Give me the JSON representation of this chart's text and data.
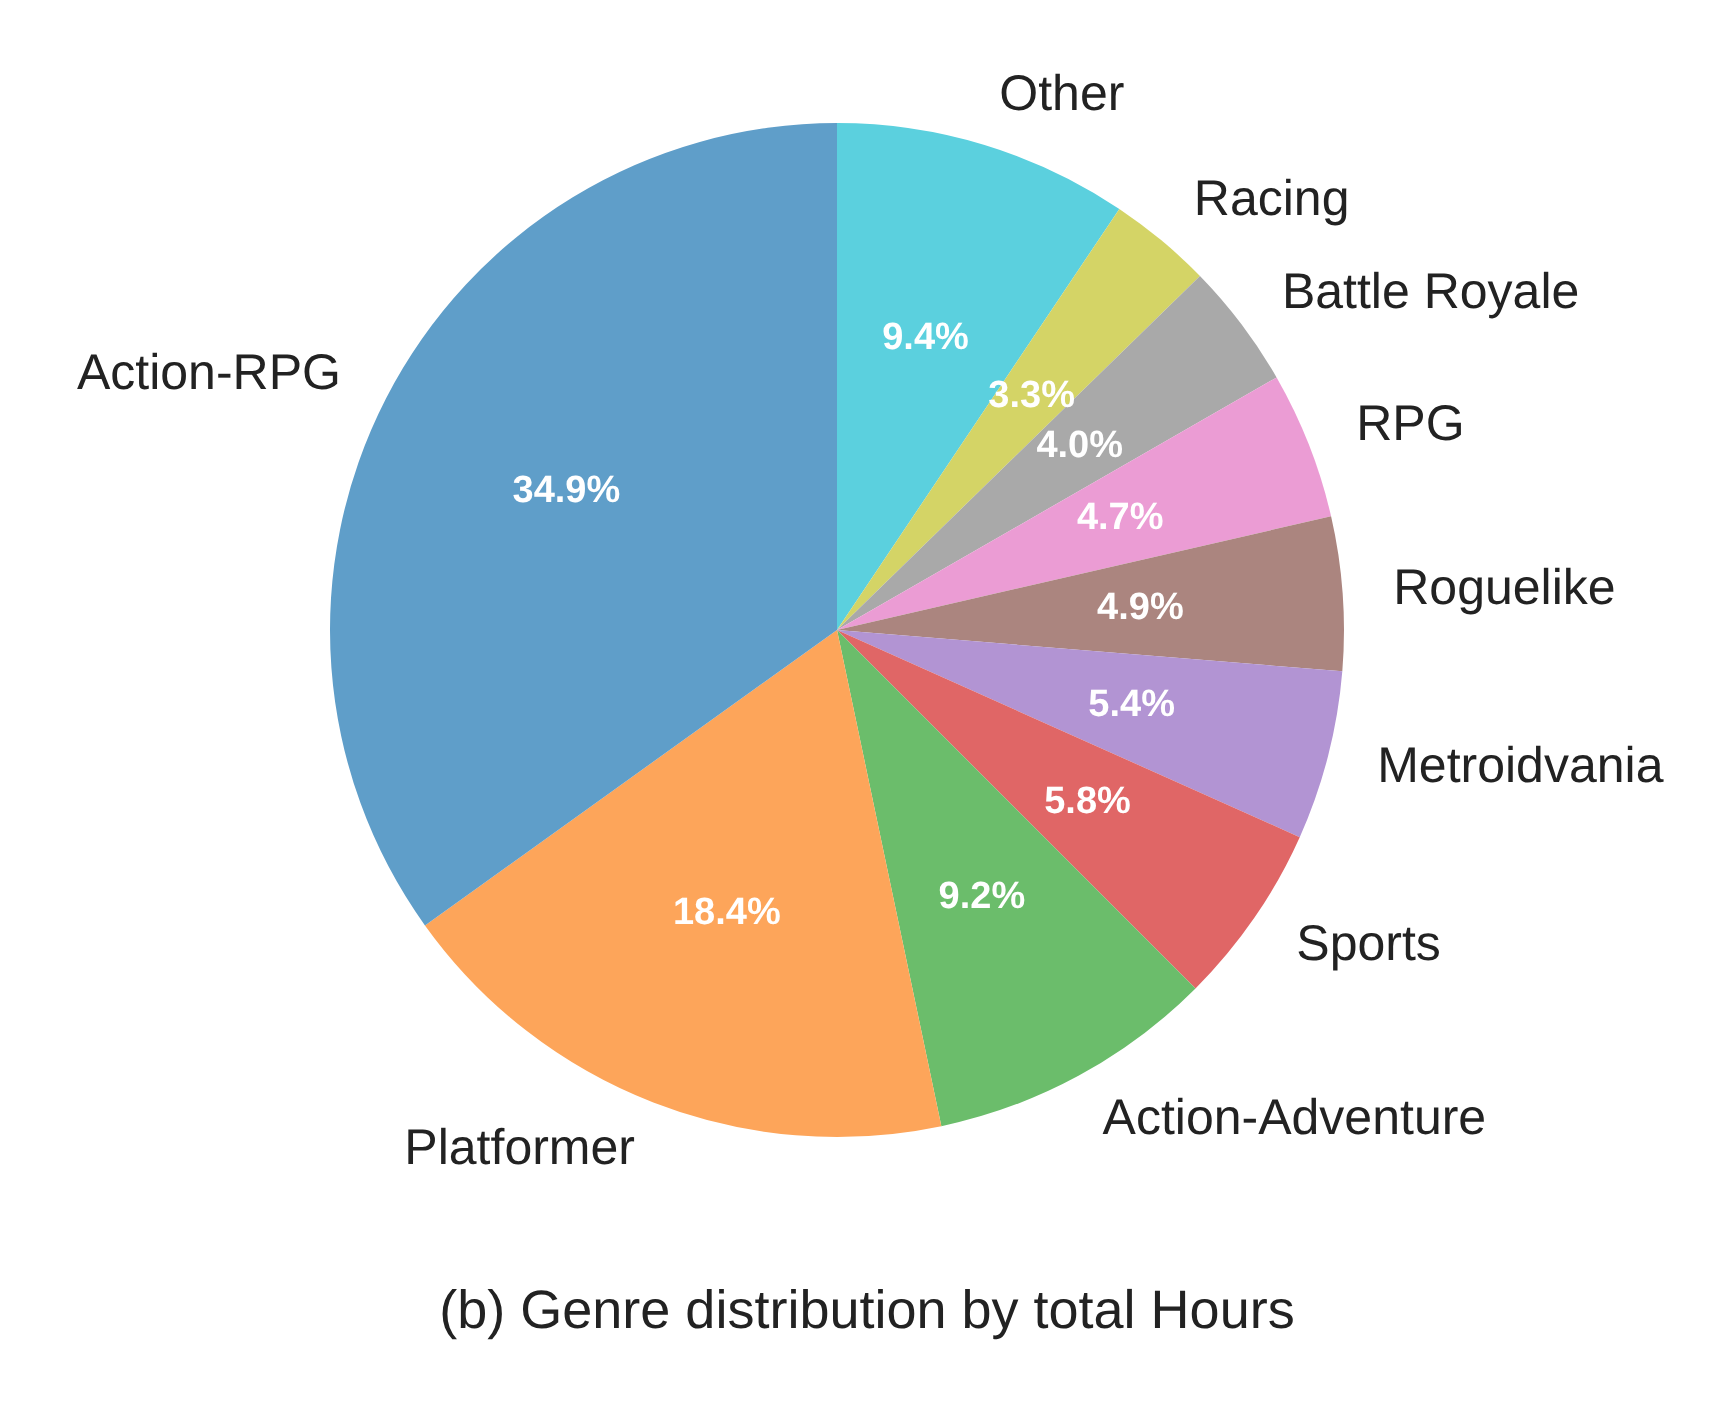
{
  "chart_data": {
    "type": "pie",
    "title": "(b) Genre distribution by total Hours",
    "categories": [
      "Other",
      "Racing",
      "Battle Royale",
      "RPG",
      "Roguelike",
      "Metroidvania",
      "Sports",
      "Action-Adventure",
      "Platformer",
      "Action-RPG"
    ],
    "values": [
      9.4,
      3.3,
      4.0,
      4.7,
      4.9,
      5.4,
      5.8,
      9.2,
      18.4,
      34.9
    ],
    "colors": [
      "#5bd0de",
      "#d4d466",
      "#a9a9a9",
      "#eb9cd4",
      "#ab857f",
      "#b294d3",
      "#e06666",
      "#6bbd6b",
      "#fda55a",
      "#5f9ec9"
    ],
    "value_labels": [
      "9.4%",
      "3.3%",
      "4.0%",
      "4.7%",
      "4.9%",
      "5.4%",
      "5.8%",
      "9.2%",
      "18.4%",
      "34.9%"
    ],
    "legend": false
  }
}
